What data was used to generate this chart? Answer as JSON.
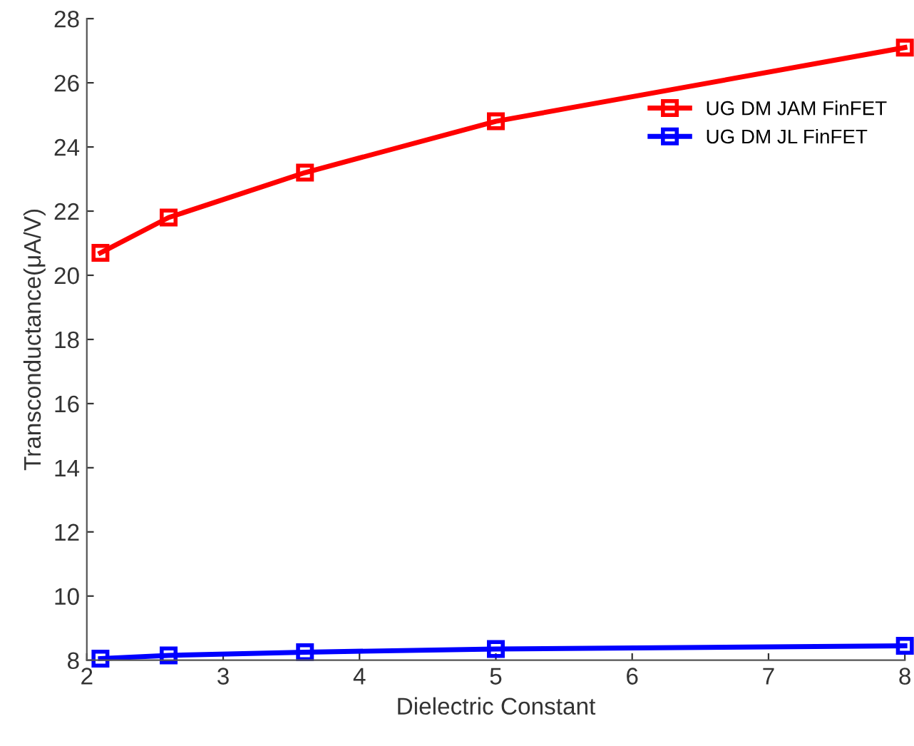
{
  "chart_data": {
    "type": "line",
    "xlabel": "Dielectric Constant",
    "ylabel": "Transconductance(μA/V)",
    "x": [
      2.1,
      2.6,
      3.6,
      5,
      8
    ],
    "series": [
      {
        "name": "UG DM JAM FinFET",
        "color": "#ff0000",
        "values": [
          20.7,
          21.8,
          23.2,
          24.8,
          27.1
        ]
      },
      {
        "name": "UG DM JL FinFET",
        "color": "#0000ff",
        "values": [
          8.05,
          8.15,
          8.25,
          8.35,
          8.45
        ]
      }
    ],
    "xlim": [
      2,
      8
    ],
    "xticks": [
      2,
      3,
      4,
      5,
      6,
      7,
      8
    ],
    "ylim": [
      8,
      28
    ],
    "yticks": [
      8,
      10,
      12,
      14,
      16,
      18,
      20,
      22,
      24,
      26,
      28
    ],
    "marker": "square",
    "line_style": "solid",
    "grid": false,
    "legend": "top right"
  }
}
